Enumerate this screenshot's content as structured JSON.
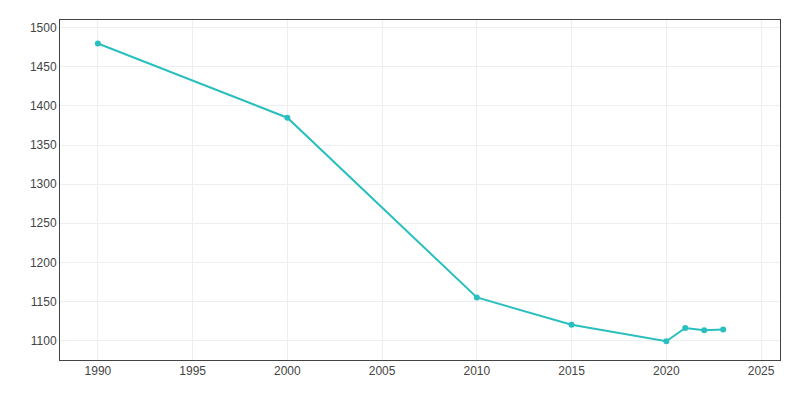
{
  "chart_data": {
    "type": "line",
    "x": [
      1990,
      2000,
      2010,
      2015,
      2020,
      2021,
      2022,
      2023
    ],
    "values": [
      1480,
      1385,
      1155,
      1120,
      1099,
      1116,
      1113,
      1114
    ],
    "color": "#2abfbf",
    "marker": "circle",
    "xlim": [
      1988,
      2026
    ],
    "ylim": [
      1075,
      1510
    ],
    "xticks": [
      1990,
      1995,
      2000,
      2005,
      2010,
      2015,
      2020,
      2025
    ],
    "yticks": [
      1100,
      1150,
      1200,
      1250,
      1300,
      1350,
      1400,
      1450,
      1500
    ],
    "grid": true
  }
}
